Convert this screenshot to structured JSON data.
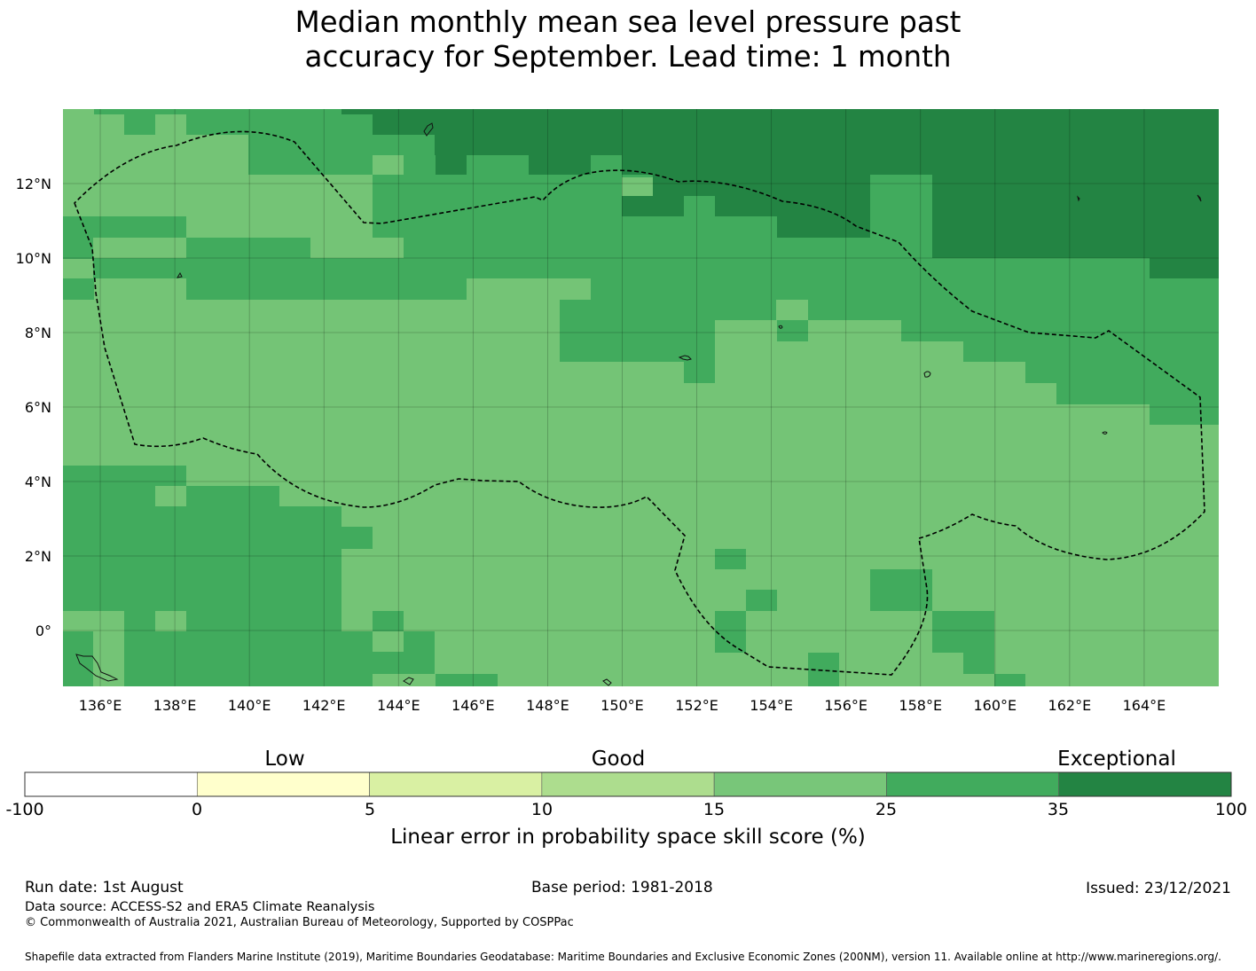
{
  "title": {
    "line1": "Median monthly mean sea level pressure past",
    "line2": "accuracy for September. Lead time: 1 month"
  },
  "map": {
    "lon_ticks": [
      "136°E",
      "138°E",
      "140°E",
      "142°E",
      "144°E",
      "146°E",
      "148°E",
      "150°E",
      "152°E",
      "154°E",
      "156°E",
      "158°E",
      "160°E",
      "162°E",
      "164°E"
    ],
    "lat_ticks": [
      "12°N",
      "10°N",
      "8°N",
      "6°N",
      "4°N",
      "2°N",
      "0°"
    ],
    "lon_range": [
      135,
      166
    ],
    "lat_range": [
      -1.5,
      14
    ],
    "gridlines": true,
    "eez_boundary": "dashed black",
    "colors": {
      "c15_25": "#74c476",
      "c25_35": "#41ab5d",
      "c35_100": "#238443"
    }
  },
  "colorbar": {
    "category_labels": [
      "Low",
      "Good",
      "Exceptional"
    ],
    "tick_labels": [
      "-100",
      "0",
      "5",
      "10",
      "15",
      "25",
      "35",
      "100"
    ],
    "colors": [
      "#ffffff",
      "#ffffcc",
      "#d9f0a3",
      "#addd8e",
      "#78c679",
      "#41ab5d",
      "#238443"
    ],
    "axis_label": "Linear error in probability space skill score (%)"
  },
  "footer": {
    "run_date": "Run date: 1st August",
    "base_period": "Base period: 1981-2018",
    "issued": "Issued: 23/12/2021",
    "data_source": "Data source: ACCESS-S2 and ERA5 Climate Reanalysis",
    "copyright": "© Commonwealth of Australia 2021, Australian Bureau of Meteorology, Supported by COSPPac",
    "shapefile": "Shapefile data extracted from Flanders Marine Institute (2019), Maritime Boundaries Geodatabase: Maritime Boundaries and Exclusive Economic Zones (200NM), version 11. Available online at http://www.marineregions.org/."
  }
}
